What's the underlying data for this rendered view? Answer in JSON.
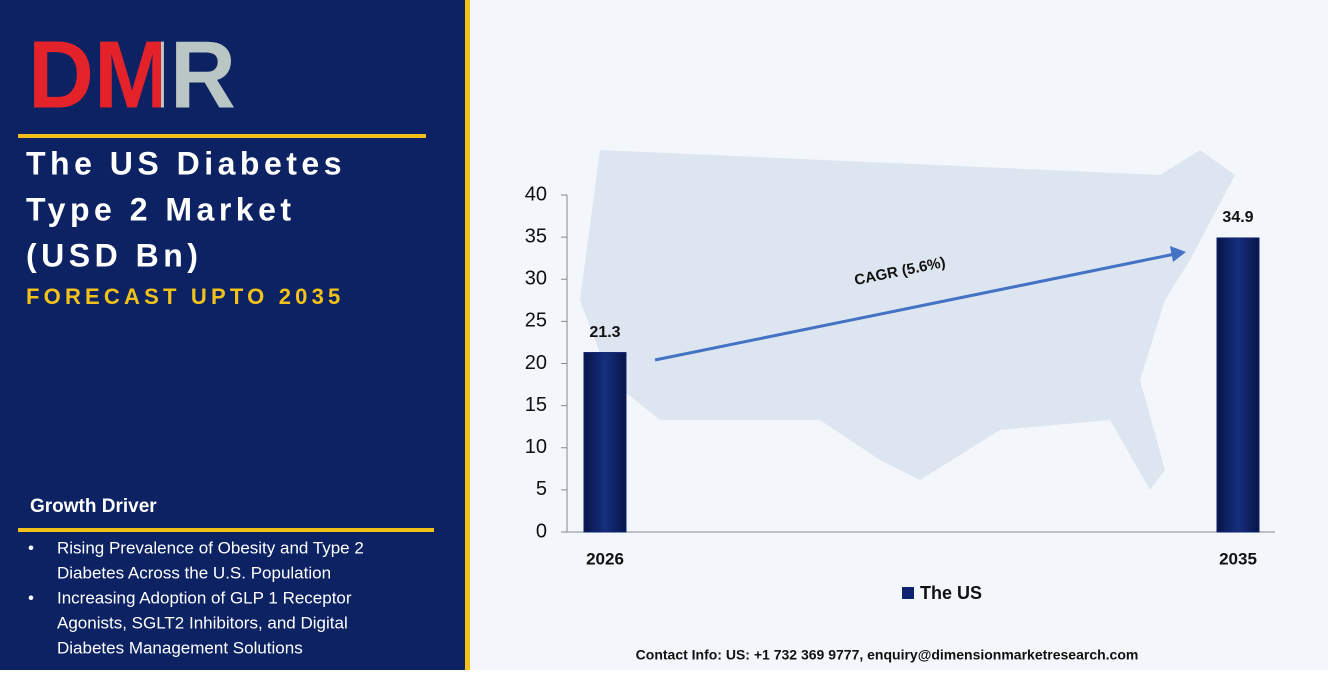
{
  "logo": "DMR",
  "panel": {
    "title_lines": [
      "The US Diabetes",
      "Type 2 Market",
      "(USD Bn)"
    ],
    "subtitle": "FORECAST UPTO 2035",
    "driver_heading": "Growth Driver",
    "drivers": [
      [
        "Rising Prevalence of Obesity and Type 2",
        "Diabetes Across the U.S. Population"
      ],
      [
        "Increasing Adoption of GLP 1 Receptor",
        "Agonists, SGLT2 Inhibitors, and Digital",
        "Diabetes Management Solutions"
      ]
    ]
  },
  "chart_data": {
    "type": "bar",
    "categories": [
      "2026",
      "2035"
    ],
    "series": [
      {
        "name": "The US",
        "color": "#0e2270",
        "values": [
          21.3,
          34.9
        ]
      }
    ],
    "ylim": [
      0,
      40
    ],
    "yticks": [
      0,
      5,
      10,
      15,
      20,
      25,
      30,
      35,
      40
    ],
    "annotation": "CAGR (5.6%)",
    "legend": "bottom"
  },
  "footer": "Contact Info: US: +1 732 369 9777, enquiry@dimensionmarketresearch.com"
}
